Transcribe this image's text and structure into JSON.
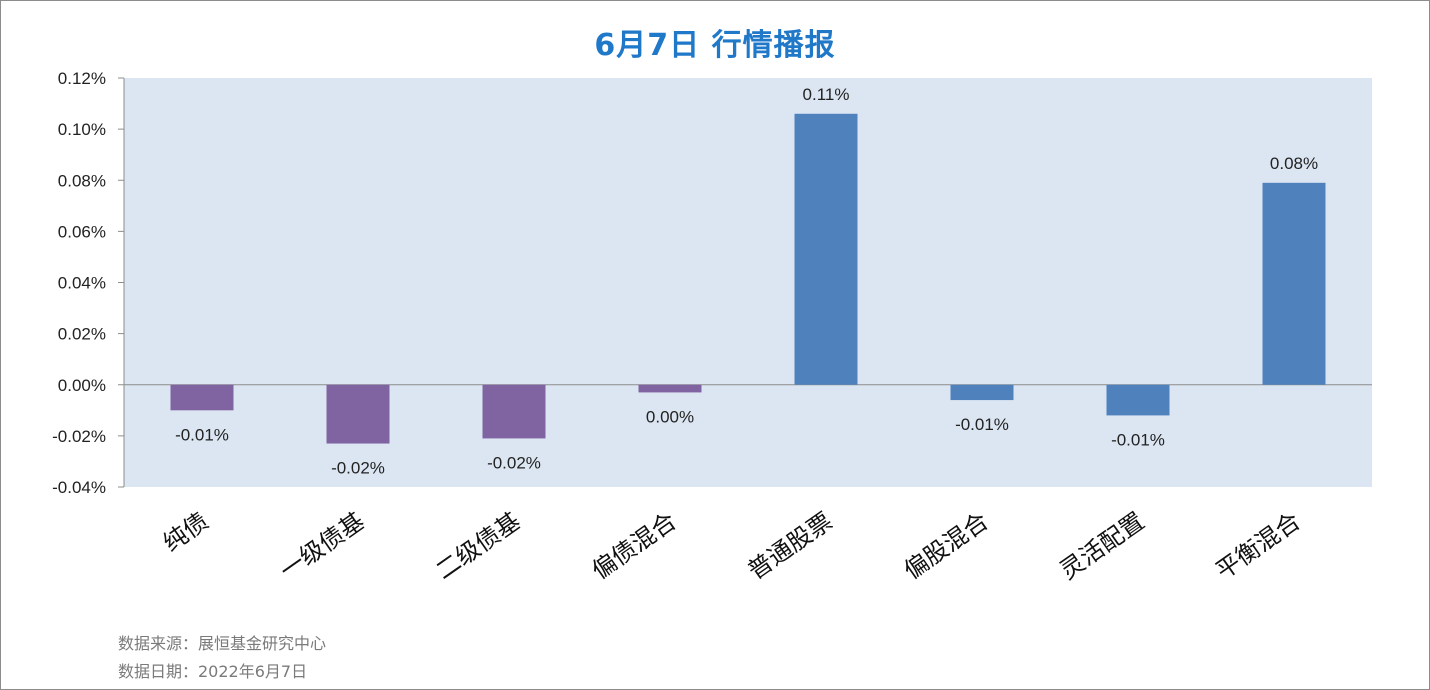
{
  "chart_data": {
    "type": "bar",
    "title": "6月7日  行情播报",
    "categories": [
      "纯债",
      "一级债基",
      "二级债基",
      "偏债混合",
      "普通股票",
      "偏股混合",
      "灵活配置",
      "平衡混合"
    ],
    "values": [
      -0.0001,
      -0.00023,
      -0.00021,
      -3e-05,
      0.00106,
      -6e-05,
      -0.00012,
      0.00079
    ],
    "data_labels": [
      "-0.01%",
      "-0.02%",
      "-0.02%",
      "0.00%",
      "0.11%",
      "-0.01%",
      "-0.01%",
      "0.08%"
    ],
    "ylim": [
      -0.0004,
      0.0012
    ],
    "yticks": [
      -0.0004,
      -0.0002,
      0,
      0.0002,
      0.0004,
      0.0006,
      0.0008,
      0.001,
      0.0012
    ],
    "ytick_labels": [
      "-0.04%",
      "-0.02%",
      "0.00%",
      "0.02%",
      "0.04%",
      "0.06%",
      "0.08%",
      "0.10%",
      "0.12%"
    ],
    "bar_colors": [
      "#8064a2",
      "#8064a2",
      "#8064a2",
      "#8064a2",
      "#4f81bd",
      "#4f81bd",
      "#4f81bd",
      "#4f81bd"
    ],
    "plot_background": "#dce6f2",
    "grid": false,
    "legend": "none"
  },
  "footer": {
    "source": "数据来源：展恒基金研究中心",
    "date": "数据日期：2022年6月7日"
  },
  "colors": {
    "title": "#1f78c8",
    "fund_bond": "#8064a2",
    "fund_equity": "#4f81bd"
  }
}
